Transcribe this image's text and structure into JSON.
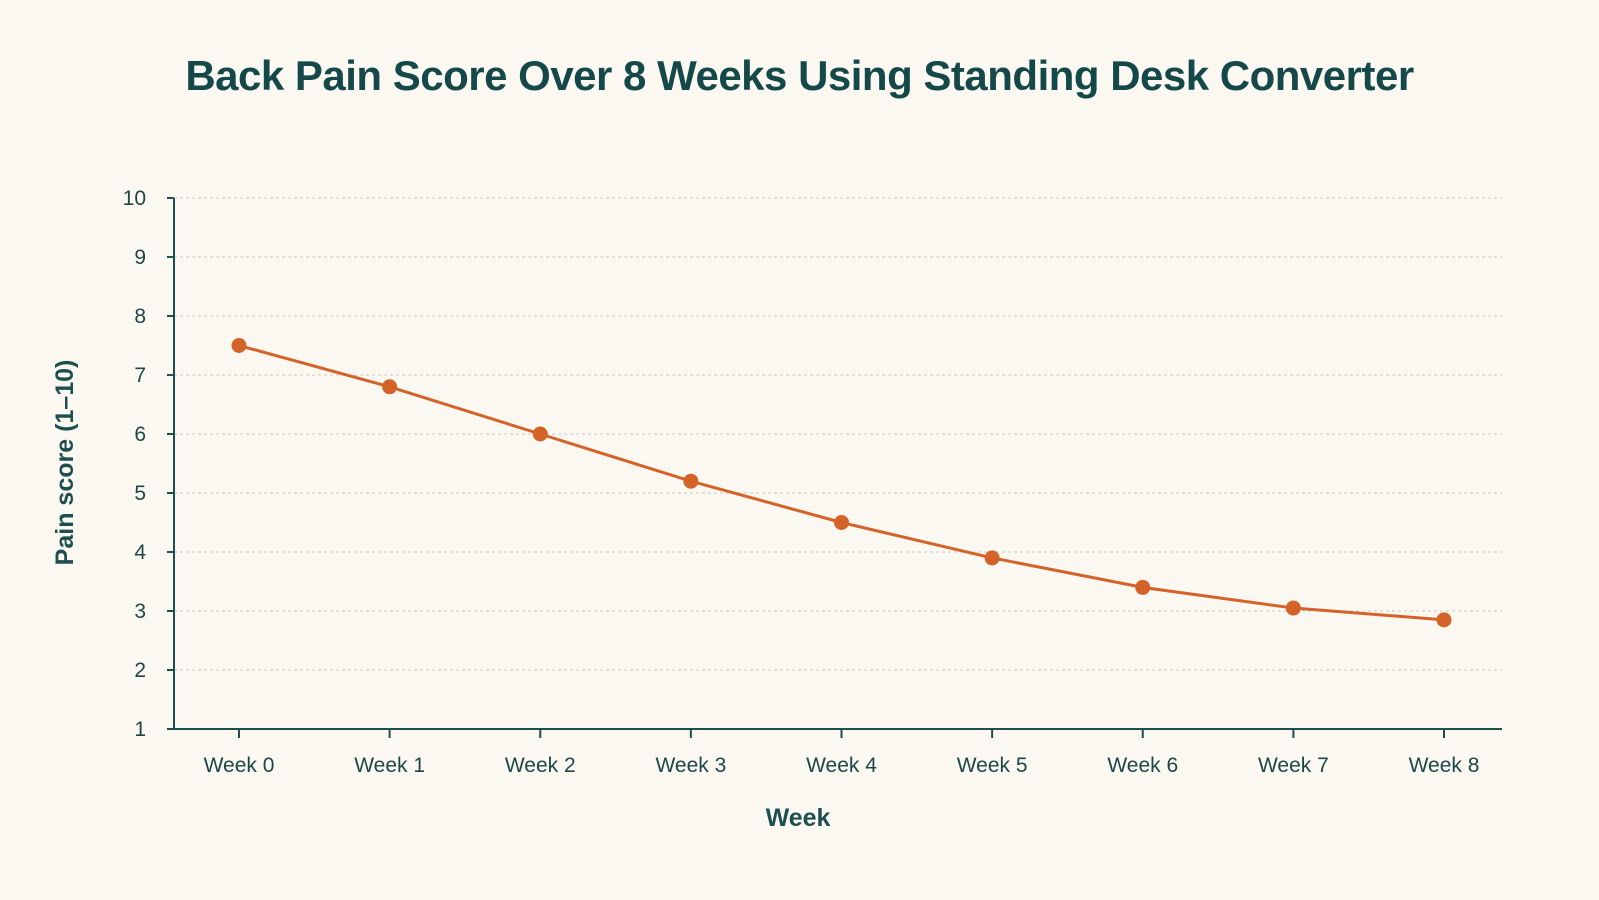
{
  "colors": {
    "background": "#fbf8f2",
    "title": "#154848",
    "axis": "#1d4f4f",
    "grid": "#d4d1ca",
    "series": "#d4632a"
  },
  "chart_data": {
    "type": "line",
    "title": "Back Pain Score Over 8 Weeks Using Standing Desk Converter",
    "xlabel": "Week",
    "ylabel": "Pain score (1–10)",
    "categories": [
      "Week 0",
      "Week 1",
      "Week 2",
      "Week 3",
      "Week 4",
      "Week 5",
      "Week 6",
      "Week 7",
      "Week 8"
    ],
    "yticks": [
      "1",
      "2",
      "3",
      "4",
      "5",
      "6",
      "7",
      "8",
      "9",
      "10"
    ],
    "ylim": [
      1,
      10
    ],
    "grid": true,
    "grid_style": "dashed-horizontal",
    "legend": "none",
    "series": [
      {
        "values": [
          7.5,
          6.8,
          6.0,
          5.2,
          4.5,
          3.9,
          3.4,
          3.05,
          2.85
        ],
        "color": "#d4632a",
        "marker": "circle"
      }
    ]
  }
}
